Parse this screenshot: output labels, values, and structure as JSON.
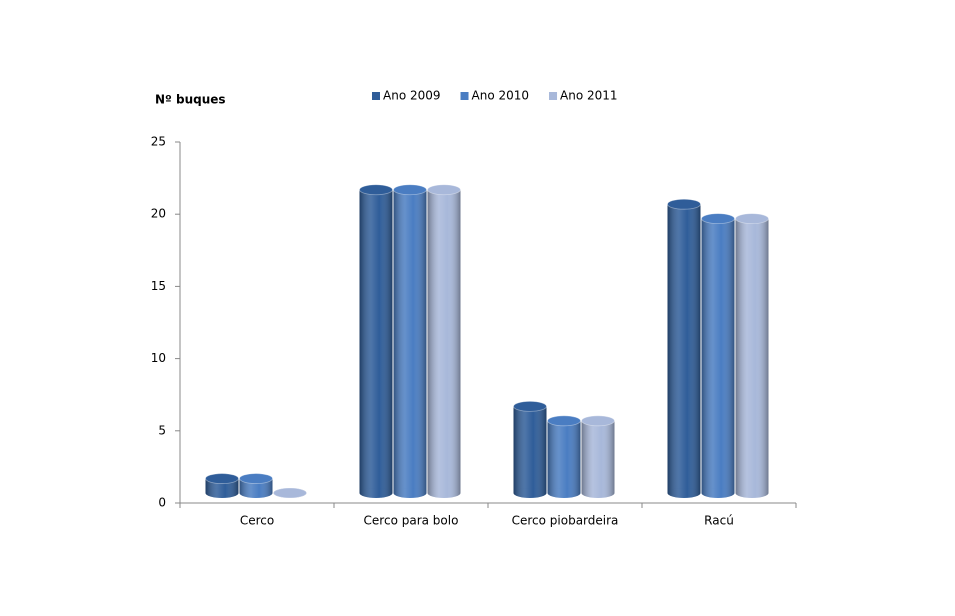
{
  "chart_data": {
    "type": "bar",
    "y_label": "Nº buques",
    "categories": [
      "Cerco",
      "Cerco para bolo",
      "Cerco piobardeira",
      "Racú"
    ],
    "series": [
      {
        "name": "Ano 2009",
        "color": "#2f5d99",
        "values": [
          1,
          21,
          6,
          20
        ]
      },
      {
        "name": "Ano 2010",
        "color": "#4a7dc2",
        "values": [
          1,
          21,
          5,
          19
        ]
      },
      {
        "name": "Ano 2011",
        "color": "#a8b8da",
        "values": [
          0,
          21,
          5,
          19
        ]
      }
    ],
    "ylim": [
      0,
      25
    ],
    "yticks": [
      0,
      5,
      10,
      15,
      20,
      25
    ],
    "grid": false
  }
}
